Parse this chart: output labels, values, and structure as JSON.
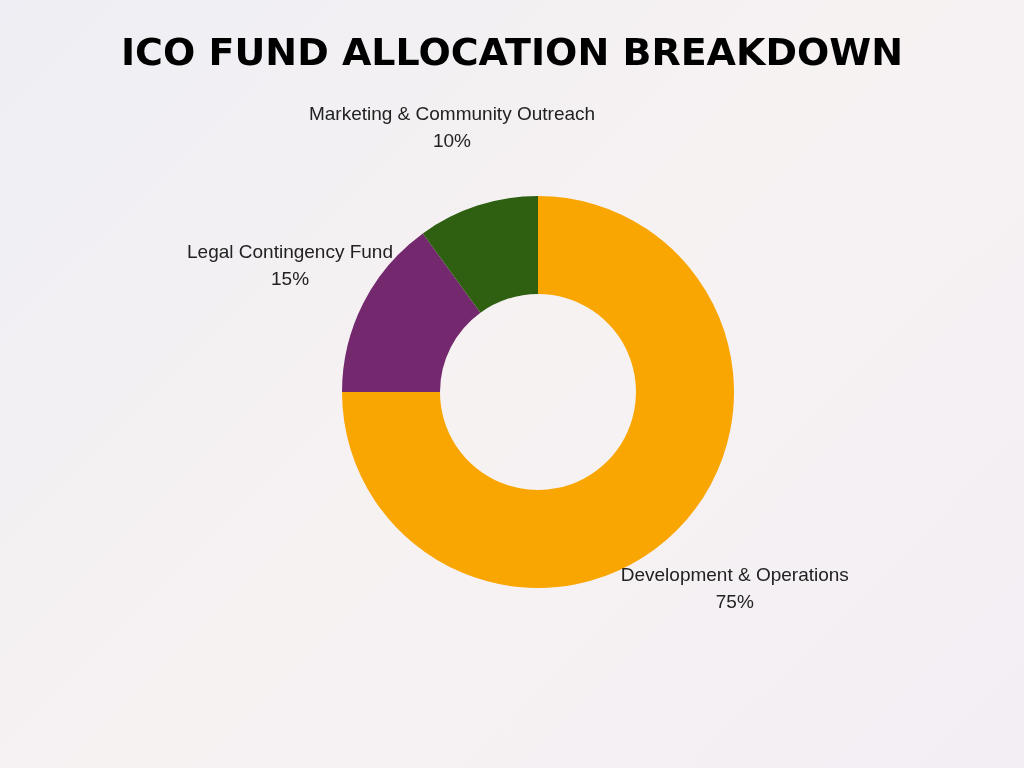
{
  "chart_data": {
    "type": "donut",
    "title": "ICO FUND ALLOCATION BREAKDOWN",
    "categories": [
      "Development & Operations",
      "Legal Contingency Fund",
      "Marketing & Community Outreach"
    ],
    "values": [
      75,
      15,
      10
    ],
    "value_labels": [
      "75%",
      "15%",
      "10%"
    ],
    "colors": [
      "#f9a602",
      "#74286e",
      "#2f5f10"
    ],
    "legend": false
  }
}
